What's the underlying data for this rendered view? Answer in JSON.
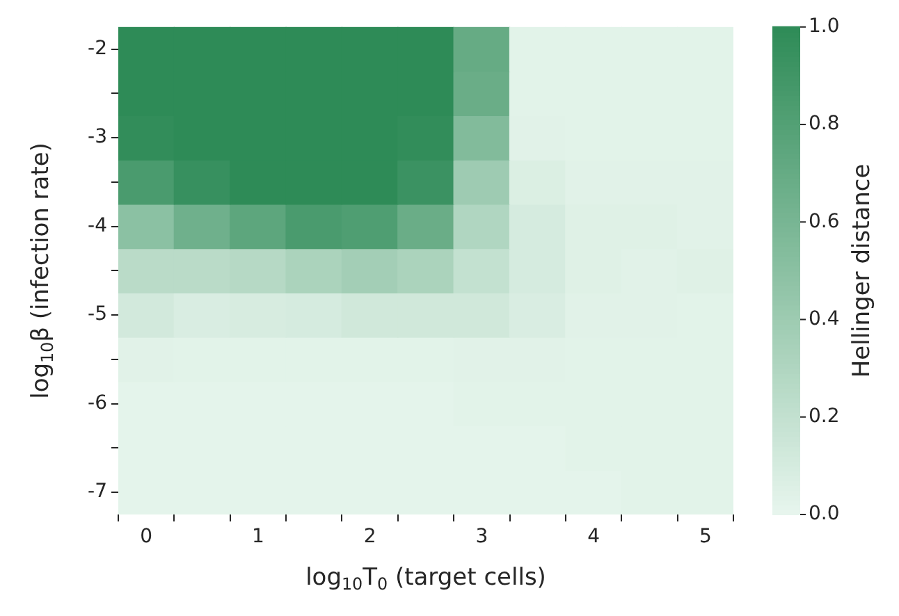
{
  "chart_data": {
    "type": "heatmap",
    "xlabel": "log$_{10}$T$_{0}$ (target cells)",
    "ylabel": "log$_{10}$β (infection rate)",
    "clabel": "Hellinger distance",
    "categories": [
      "0",
      null,
      "1",
      null,
      "2",
      null,
      "3",
      null,
      "4",
      null,
      "5"
    ],
    "y_categories": [
      "-2",
      null,
      "-3",
      null,
      "-4",
      null,
      "-5",
      null,
      "-6",
      null,
      "-7"
    ],
    "cells": [
      [
        1.0,
        1.0,
        1.0,
        1.0,
        1.0,
        1.0,
        0.7,
        0.03,
        0.03,
        0.03,
        0.03
      ],
      [
        1.0,
        1.0,
        1.0,
        1.0,
        1.0,
        1.0,
        0.68,
        0.03,
        0.03,
        0.03,
        0.03
      ],
      [
        0.98,
        1.0,
        1.0,
        1.0,
        1.0,
        0.98,
        0.55,
        0.04,
        0.03,
        0.03,
        0.03
      ],
      [
        0.85,
        0.95,
        1.0,
        1.0,
        1.0,
        0.93,
        0.4,
        0.07,
        0.04,
        0.04,
        0.04
      ],
      [
        0.5,
        0.65,
        0.75,
        0.85,
        0.82,
        0.68,
        0.3,
        0.1,
        0.05,
        0.05,
        0.04
      ],
      [
        0.25,
        0.25,
        0.27,
        0.33,
        0.37,
        0.33,
        0.2,
        0.1,
        0.05,
        0.04,
        0.05
      ],
      [
        0.12,
        0.08,
        0.09,
        0.1,
        0.13,
        0.13,
        0.13,
        0.08,
        0.04,
        0.04,
        0.03
      ],
      [
        0.04,
        0.03,
        0.03,
        0.03,
        0.03,
        0.03,
        0.04,
        0.04,
        0.03,
        0.03,
        0.03
      ],
      [
        0.02,
        0.02,
        0.02,
        0.02,
        0.02,
        0.02,
        0.03,
        0.03,
        0.03,
        0.03,
        0.03
      ],
      [
        0.02,
        0.02,
        0.02,
        0.02,
        0.02,
        0.02,
        0.02,
        0.02,
        0.03,
        0.03,
        0.03
      ],
      [
        0.02,
        0.02,
        0.02,
        0.02,
        0.02,
        0.02,
        0.02,
        0.02,
        0.02,
        0.03,
        0.03
      ]
    ],
    "clim": [
      0,
      1
    ],
    "cticks": [
      {
        "value": 0,
        "label": "0.0"
      },
      {
        "value": 0.2,
        "label": "0.2"
      },
      {
        "value": 0.4,
        "label": "0.4"
      },
      {
        "value": 0.6,
        "label": "0.6"
      },
      {
        "value": 0.8,
        "label": "0.8"
      },
      {
        "value": 1,
        "label": "1.0"
      }
    ]
  }
}
